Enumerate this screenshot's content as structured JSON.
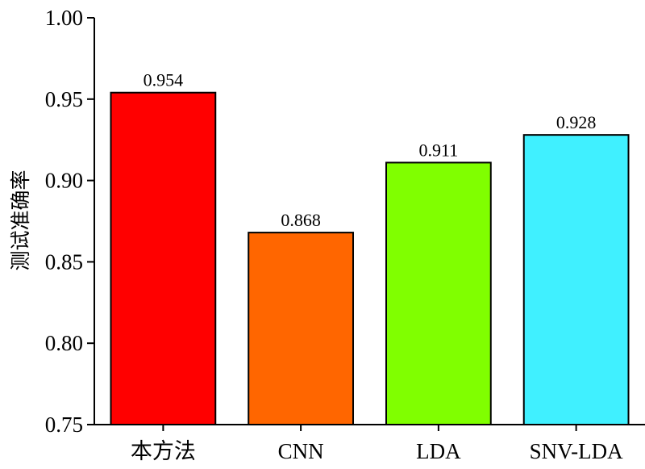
{
  "chart_data": {
    "type": "bar",
    "title": "",
    "xlabel": "",
    "ylabel": "测试准确率",
    "categories": [
      "本方法",
      "CNN",
      "LDA",
      "SNV-LDA"
    ],
    "values": [
      0.954,
      0.868,
      0.911,
      0.928
    ],
    "value_labels": [
      "0.954",
      "0.868",
      "0.911",
      "0.928"
    ],
    "colors": [
      "#ff0000",
      "#ff6600",
      "#80ff00",
      "#40f0ff"
    ],
    "ylim": [
      0.75,
      1.0
    ],
    "yticks": [
      0.75,
      0.8,
      0.85,
      0.9,
      0.95,
      1.0
    ],
    "ytick_labels": [
      "0.75",
      "0.80",
      "0.85",
      "0.90",
      "0.95",
      "1.00"
    ],
    "grid": false,
    "legend": "none"
  }
}
